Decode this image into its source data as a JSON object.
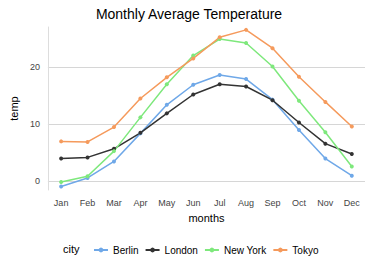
{
  "chart_data": {
    "type": "line",
    "title": "Monthly Average Temperature",
    "x_label": "months",
    "y_label": "temp",
    "legend_title": "city",
    "categories": [
      "Jan",
      "Feb",
      "Mar",
      "Apr",
      "May",
      "Jun",
      "Jul",
      "Aug",
      "Sep",
      "Oct",
      "Nov",
      "Dec"
    ],
    "series": [
      {
        "name": "Berlin",
        "color": "#6fa8e8",
        "values": [
          -0.9,
          0.6,
          3.5,
          8.4,
          13.4,
          16.9,
          18.6,
          17.9,
          14.3,
          9.0,
          4.0,
          1.0
        ]
      },
      {
        "name": "London",
        "color": "#333333",
        "values": [
          4.0,
          4.2,
          5.7,
          8.5,
          11.9,
          15.2,
          17.0,
          16.6,
          14.2,
          10.3,
          6.6,
          4.8
        ]
      },
      {
        "name": "New York",
        "color": "#7ee87c",
        "values": [
          -0.1,
          0.9,
          5.3,
          11.2,
          17.0,
          22.0,
          24.9,
          24.2,
          20.1,
          14.1,
          8.6,
          2.6
        ]
      },
      {
        "name": "Tokyo",
        "color": "#f59a5c",
        "values": [
          7.0,
          6.9,
          9.5,
          14.5,
          18.2,
          21.5,
          25.2,
          26.5,
          23.3,
          18.3,
          13.9,
          9.6
        ]
      }
    ],
    "ylim": [
      -1.5,
      27
    ],
    "yticks": [
      0,
      10,
      20
    ],
    "grid": true,
    "legend": "bottom",
    "marker": "circle"
  }
}
